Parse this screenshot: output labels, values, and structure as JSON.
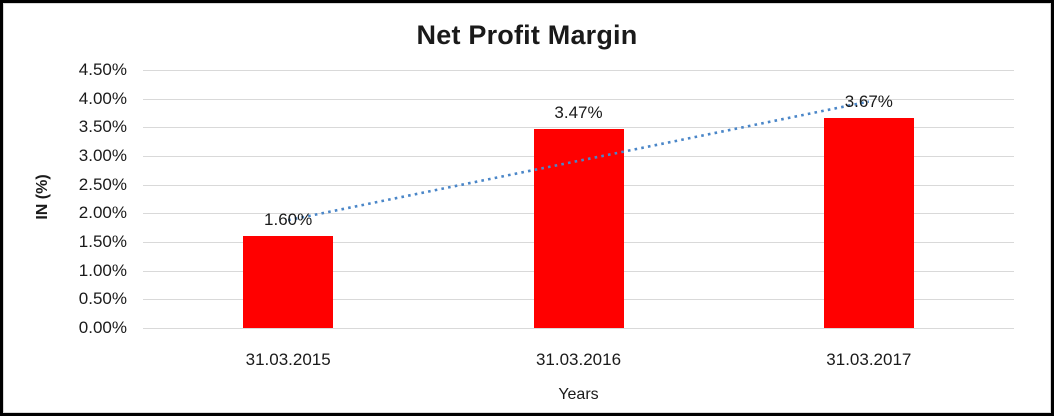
{
  "chart_data": {
    "type": "bar",
    "title": "Net Profit Margin",
    "xlabel": "Years",
    "ylabel": "IN (%)",
    "categories": [
      "31.03.2015",
      "31.03.2016",
      "31.03.2017"
    ],
    "values": [
      1.6,
      3.47,
      3.67
    ],
    "data_labels": [
      "1.60%",
      "3.47%",
      "3.67%"
    ],
    "y_ticks": [
      "4.50%",
      "4.00%",
      "3.50%",
      "3.00%",
      "2.50%",
      "2.00%",
      "1.50%",
      "1.00%",
      "0.50%",
      "0.00%"
    ],
    "y_tick_values": [
      4.5,
      4.0,
      3.5,
      3.0,
      2.5,
      2.0,
      1.5,
      1.0,
      0.5,
      0.0
    ],
    "ylim": [
      0,
      4.5
    ],
    "grid": true,
    "legend": false,
    "trendline": {
      "type": "linear",
      "style": "dotted",
      "start_value": 1.88,
      "end_value": 3.95
    },
    "colors": {
      "bar": "#FF0000",
      "trendline": "#4A86C8",
      "gridline": "#D9D9D9",
      "text": "#1A1A1A",
      "border": "#000000",
      "background": "#FFFFFF"
    }
  }
}
